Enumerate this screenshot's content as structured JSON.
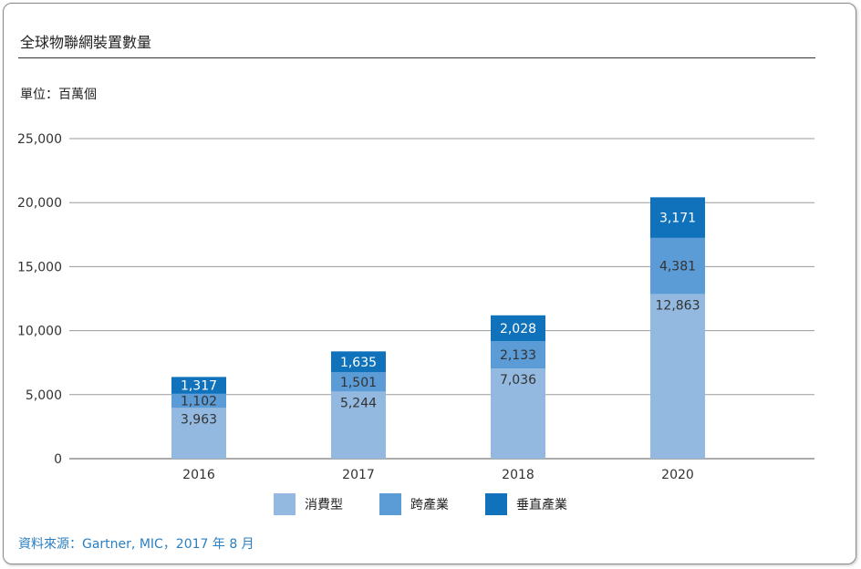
{
  "title": "全球物聯網裝置數量",
  "unit_label": "單位：百萬個",
  "source": "資料來源：Gartner, MIC，2017 年 8 月",
  "colors": {
    "consumer": "#93b9e0",
    "cross_industry": "#5b9bd6",
    "vertical": "#1072bb",
    "grid": "#9a9a9a"
  },
  "legend": [
    {
      "label": "消費型",
      "color": "#93b9e0"
    },
    {
      "label": "跨產業",
      "color": "#5b9bd6"
    },
    {
      "label": "垂直產業",
      "color": "#1072bb"
    }
  ],
  "chart_data": {
    "type": "bar",
    "stacked": true,
    "categories": [
      "2016",
      "2017",
      "2018",
      "2020"
    ],
    "series": [
      {
        "name": "消費型",
        "values": [
          3963,
          5244,
          7036,
          12863
        ],
        "labels": [
          "3,963",
          "5,244",
          "7,036",
          "12,863"
        ]
      },
      {
        "name": "跨產業",
        "values": [
          1102,
          1501,
          2133,
          4381
        ],
        "labels": [
          "1,102",
          "1,501",
          "2,133",
          "4,381"
        ]
      },
      {
        "name": "垂直產業",
        "values": [
          1317,
          1635,
          2028,
          3171
        ],
        "labels": [
          "1,317",
          "1,635",
          "2,028",
          "3,171"
        ]
      }
    ],
    "ylim": [
      0,
      25000
    ],
    "yticks": [
      0,
      5000,
      10000,
      15000,
      20000,
      25000
    ],
    "ytick_labels": [
      "0",
      "5,000",
      "10,000",
      "15,000",
      "20,000",
      "25,000"
    ],
    "grid": true,
    "legend_position": "bottom"
  }
}
